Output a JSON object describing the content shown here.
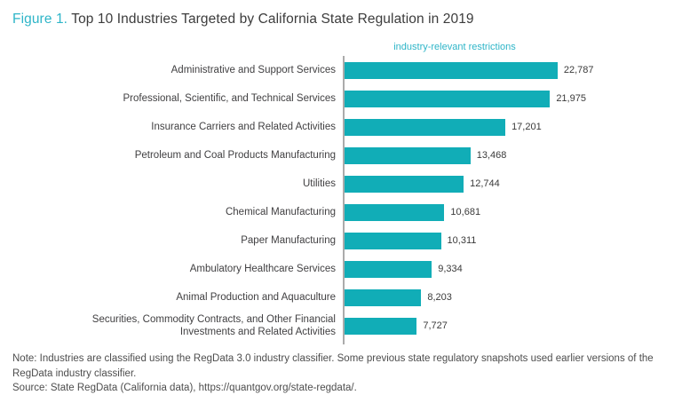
{
  "title": {
    "figure_label": "Figure 1.",
    "text": "Top 10 Industries Targeted by California State Regulation in 2019"
  },
  "legend": {
    "label": "industry-relevant restrictions"
  },
  "chart_data": {
    "type": "bar",
    "orientation": "horizontal",
    "title": "Top 10 Industries Targeted by California State Regulation in 2019",
    "series_name": "industry-relevant restrictions",
    "xlim": [
      0,
      23750
    ],
    "grid": false,
    "legend_position": "top",
    "categories": [
      "Administrative and Support Services",
      "Professional, Scientific, and Technical Services",
      "Insurance Carriers and Related Activities",
      "Petroleum and Coal Products Manufacturing",
      "Utilities",
      "Chemical Manufacturing",
      "Paper Manufacturing",
      "Ambulatory Healthcare Services",
      "Animal Production and Aquaculture",
      "Securities, Commodity Contracts, and Other Financial\nInvestments and Related Activities"
    ],
    "values": [
      22787,
      21975,
      17201,
      13468,
      12744,
      10681,
      10311,
      9334,
      8203,
      7727
    ],
    "value_labels": [
      "22,787",
      "21,975",
      "17,201",
      "13,468",
      "12,744",
      "10,681",
      "10,311",
      "9,334",
      "8,203",
      "7,727"
    ]
  },
  "notes": {
    "note": "Note: Industries are classified using the RegData 3.0 industry classifier. Some previous state regulatory snapshots used earlier versions of the RegData industry classifier.",
    "source": "Source: State RegData (California data), https://quantgov.org/state-regdata/."
  },
  "colors": {
    "accent_teal": "#2EB5C8",
    "bar_teal": "#11ADB7",
    "title_text": "#3C3C3C",
    "axis_gray": "#ABABAB",
    "note_gray": "#4D4D4D"
  }
}
